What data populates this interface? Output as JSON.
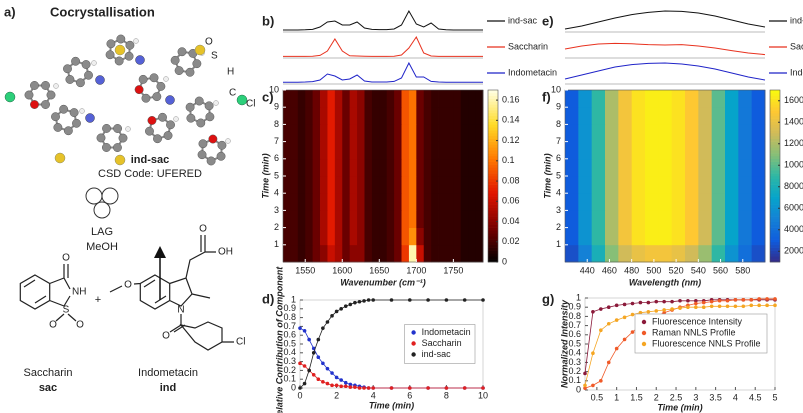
{
  "panels": [
    "a)",
    "b)",
    "c)",
    "d)",
    "e)",
    "f)",
    "g)"
  ],
  "scheme": {
    "title": "Cocrystallisation",
    "atom_labels": [
      "O",
      "S",
      "H",
      "C",
      "Cl"
    ],
    "product": "ind-sac",
    "csd": "CSD Code: UFERED",
    "conditions": [
      "LAG",
      "MeOH"
    ],
    "plus": "+",
    "sac_atoms": [
      "O",
      "NH",
      "S",
      "O",
      "O"
    ],
    "ind_atoms": [
      "O",
      "O",
      "OH",
      "N",
      "O",
      "Cl"
    ],
    "reactants": [
      {
        "name": "Saccharin",
        "code": "sac"
      },
      {
        "name": "Indometacin",
        "code": "ind"
      }
    ]
  },
  "chart_data": [
    {
      "type": "spectra",
      "xlim": [
        1520,
        1790
      ],
      "ylim": [
        0,
        1
      ],
      "x": [
        1520,
        1530,
        1540,
        1550,
        1560,
        1570,
        1580,
        1590,
        1600,
        1610,
        1620,
        1630,
        1640,
        1650,
        1660,
        1670,
        1680,
        1690,
        1700,
        1710,
        1720,
        1730,
        1740,
        1750,
        1760,
        1770,
        1780,
        1790
      ],
      "series": [
        {
          "name": "ind-sac",
          "color": "#111111",
          "values": [
            0.05,
            0.05,
            0.05,
            0.06,
            0.08,
            0.2,
            0.45,
            0.5,
            0.3,
            0.3,
            0.45,
            0.15,
            0.08,
            0.07,
            0.07,
            0.1,
            0.3,
            1,
            0.35,
            0.2,
            0.4,
            0.1,
            0.06,
            0.05,
            0.05,
            0.05,
            0.05,
            0.05
          ]
        },
        {
          "name": "Saccharin",
          "color": "#e8321f",
          "values": [
            0.03,
            0.03,
            0.03,
            0.03,
            0.04,
            0.08,
            0.3,
            0.9,
            0.3,
            0.06,
            0.05,
            0.04,
            0.03,
            0.03,
            0.03,
            0.04,
            0.1,
            0.45,
            1,
            0.2,
            0.05,
            0.03,
            0.03,
            0.03,
            0.03,
            0.03,
            0.03,
            0.03
          ]
        },
        {
          "name": "Indometacin",
          "color": "#1f23c8",
          "values": [
            0.04,
            0.04,
            0.04,
            0.05,
            0.07,
            0.15,
            0.45,
            0.35,
            0.15,
            0.2,
            0.4,
            0.1,
            0.05,
            0.05,
            0.05,
            0.08,
            0.25,
            1,
            0.3,
            0.3,
            0.08,
            0.05,
            0.04,
            0.04,
            0.04,
            0.04,
            0.04,
            0.04
          ]
        }
      ]
    },
    {
      "type": "heatmap",
      "xlabel": "Wavenumber (cm⁻¹)",
      "ylabel": "Time (min)",
      "colormap": "hot",
      "xlim": [
        1520,
        1790
      ],
      "ylim": [
        0,
        10
      ],
      "clim": [
        0,
        0.17
      ],
      "xticks": [
        1550,
        1600,
        1650,
        1700,
        1750
      ],
      "yticks": [
        1,
        2,
        3,
        4,
        5,
        6,
        7,
        8,
        9,
        10
      ],
      "cticks": [
        0,
        0.02,
        0.04,
        0.06,
        0.08,
        0.1,
        0.12,
        0.14,
        0.16
      ],
      "x": [
        1525,
        1535,
        1545,
        1555,
        1565,
        1575,
        1585,
        1595,
        1605,
        1615,
        1625,
        1635,
        1645,
        1655,
        1665,
        1675,
        1685,
        1695,
        1705,
        1715,
        1725,
        1735,
        1745,
        1755,
        1765,
        1775,
        1785
      ],
      "y": [
        0.5,
        1.5,
        2.5,
        3.5,
        4.5,
        5.5,
        6.5,
        7.5,
        8.5,
        9.5
      ],
      "z": [
        [
          0.02,
          0.02,
          0.015,
          0.02,
          0.03,
          0.04,
          0.06,
          0.05,
          0.03,
          0.04,
          0.04,
          0.02,
          0.015,
          0.015,
          0.02,
          0.03,
          0.08,
          0.16,
          0.06,
          0.02,
          0.015,
          0.015,
          0.015,
          0.015,
          0.01,
          0.01,
          0.01
        ],
        [
          0.02,
          0.02,
          0.015,
          0.02,
          0.03,
          0.05,
          0.07,
          0.05,
          0.03,
          0.05,
          0.04,
          0.02,
          0.015,
          0.015,
          0.02,
          0.03,
          0.09,
          0.11,
          0.04,
          0.02,
          0.015,
          0.015,
          0.015,
          0.015,
          0.01,
          0.01,
          0.01
        ],
        [
          0.02,
          0.02,
          0.015,
          0.02,
          0.03,
          0.05,
          0.07,
          0.05,
          0.03,
          0.05,
          0.04,
          0.02,
          0.015,
          0.015,
          0.02,
          0.03,
          0.09,
          0.1,
          0.03,
          0.02,
          0.015,
          0.015,
          0.015,
          0.015,
          0.01,
          0.01,
          0.01
        ],
        [
          0.02,
          0.02,
          0.015,
          0.02,
          0.03,
          0.05,
          0.07,
          0.05,
          0.03,
          0.05,
          0.04,
          0.02,
          0.015,
          0.015,
          0.02,
          0.03,
          0.09,
          0.1,
          0.03,
          0.02,
          0.015,
          0.015,
          0.015,
          0.015,
          0.01,
          0.01,
          0.01
        ],
        [
          0.02,
          0.02,
          0.015,
          0.02,
          0.03,
          0.05,
          0.07,
          0.05,
          0.03,
          0.05,
          0.04,
          0.02,
          0.015,
          0.015,
          0.02,
          0.03,
          0.09,
          0.1,
          0.03,
          0.02,
          0.015,
          0.015,
          0.015,
          0.015,
          0.01,
          0.01,
          0.01
        ],
        [
          0.02,
          0.02,
          0.015,
          0.02,
          0.03,
          0.05,
          0.07,
          0.05,
          0.03,
          0.05,
          0.04,
          0.02,
          0.015,
          0.015,
          0.02,
          0.03,
          0.09,
          0.1,
          0.03,
          0.02,
          0.015,
          0.015,
          0.015,
          0.015,
          0.01,
          0.01,
          0.01
        ],
        [
          0.02,
          0.02,
          0.015,
          0.02,
          0.03,
          0.05,
          0.07,
          0.05,
          0.03,
          0.05,
          0.04,
          0.02,
          0.015,
          0.015,
          0.02,
          0.03,
          0.09,
          0.1,
          0.03,
          0.02,
          0.015,
          0.015,
          0.015,
          0.015,
          0.01,
          0.01,
          0.01
        ],
        [
          0.02,
          0.02,
          0.015,
          0.02,
          0.03,
          0.05,
          0.07,
          0.05,
          0.03,
          0.05,
          0.04,
          0.02,
          0.015,
          0.015,
          0.02,
          0.03,
          0.09,
          0.1,
          0.03,
          0.02,
          0.015,
          0.015,
          0.015,
          0.015,
          0.01,
          0.01,
          0.01
        ],
        [
          0.02,
          0.02,
          0.015,
          0.02,
          0.03,
          0.05,
          0.07,
          0.05,
          0.03,
          0.05,
          0.04,
          0.02,
          0.015,
          0.015,
          0.02,
          0.03,
          0.09,
          0.1,
          0.03,
          0.02,
          0.015,
          0.015,
          0.015,
          0.015,
          0.01,
          0.01,
          0.01
        ],
        [
          0.02,
          0.02,
          0.015,
          0.02,
          0.03,
          0.05,
          0.07,
          0.05,
          0.03,
          0.05,
          0.04,
          0.02,
          0.015,
          0.015,
          0.02,
          0.03,
          0.09,
          0.1,
          0.03,
          0.02,
          0.015,
          0.015,
          0.015,
          0.015,
          0.01,
          0.01,
          0.01
        ]
      ]
    },
    {
      "type": "scatter",
      "xlabel": "Time (min)",
      "ylabel": "Relative Contribution of Component",
      "xlim": [
        0,
        10
      ],
      "ylim": [
        0,
        1
      ],
      "xticks": [
        0,
        2,
        4,
        6,
        8,
        10
      ],
      "yticks": [
        0,
        0.1,
        0.2,
        0.3,
        0.4,
        0.5,
        0.6,
        0.7,
        0.8,
        0.9,
        1
      ],
      "legend": "center right",
      "line": true,
      "x": [
        0,
        0.25,
        0.5,
        0.75,
        1,
        1.25,
        1.5,
        1.75,
        2,
        2.25,
        2.5,
        2.75,
        3,
        3.25,
        3.5,
        3.75,
        4,
        5,
        6,
        7,
        8,
        9,
        10
      ],
      "series": [
        {
          "name": "Indometacin",
          "color": "#2233cc",
          "values": [
            0.68,
            0.65,
            0.55,
            0.45,
            0.35,
            0.28,
            0.22,
            0.17,
            0.12,
            0.09,
            0.06,
            0.04,
            0.03,
            0.02,
            0.01,
            0,
            0,
            0,
            0,
            0,
            0,
            0,
            0
          ]
        },
        {
          "name": "Saccharin",
          "color": "#e02020",
          "values": [
            0.28,
            0.25,
            0.2,
            0.15,
            0.1,
            0.07,
            0.05,
            0.03,
            0.03,
            0.02,
            0.02,
            0.01,
            0.01,
            0,
            0,
            0,
            0,
            0,
            0,
            0,
            0,
            0,
            0
          ]
        },
        {
          "name": "ind-sac",
          "color": "#222222",
          "values": [
            0,
            0.05,
            0.2,
            0.4,
            0.55,
            0.68,
            0.75,
            0.82,
            0.87,
            0.9,
            0.93,
            0.95,
            0.97,
            0.98,
            0.99,
            1,
            1,
            1,
            1,
            1,
            1,
            1,
            1
          ]
        }
      ]
    },
    {
      "type": "spectra",
      "xlim": [
        420,
        600
      ],
      "ylim": [
        0,
        1
      ],
      "x": [
        420,
        435,
        450,
        465,
        480,
        495,
        510,
        525,
        540,
        555,
        570,
        585,
        600
      ],
      "series": [
        {
          "name": "ind-sac",
          "color": "#111111",
          "values": [
            0.1,
            0.25,
            0.45,
            0.65,
            0.82,
            0.93,
            1,
            0.98,
            0.9,
            0.75,
            0.55,
            0.35,
            0.2
          ]
        },
        {
          "name": "Saccharin",
          "color": "#e8321f",
          "values": [
            0.4,
            0.55,
            0.65,
            0.68,
            0.66,
            0.62,
            0.6,
            0.62,
            0.55,
            0.45,
            0.32,
            0.2,
            0.12
          ]
        },
        {
          "name": "Indometacin",
          "color": "#1f23c8",
          "values": [
            0.2,
            0.4,
            0.6,
            0.8,
            0.92,
            0.98,
            1,
            0.95,
            0.85,
            0.7,
            0.5,
            0.3,
            0.15
          ]
        }
      ]
    },
    {
      "type": "heatmap",
      "xlabel": "Wavelength (nm)",
      "ylabel": "Time (min)",
      "colormap": "parula",
      "xlim": [
        420,
        600
      ],
      "ylim": [
        0,
        10
      ],
      "clim": [
        1000,
        17000
      ],
      "xticks": [
        440,
        460,
        480,
        500,
        520,
        540,
        560,
        580
      ],
      "yticks": [
        1,
        2,
        3,
        4,
        5,
        6,
        7,
        8,
        9,
        10
      ],
      "cticks": [
        2000,
        4000,
        6000,
        8000,
        10000,
        12000,
        14000,
        16000
      ],
      "x": [
        426,
        438,
        450,
        462,
        474,
        486,
        498,
        510,
        522,
        534,
        546,
        558,
        570,
        582,
        594
      ],
      "y": [
        0.5,
        1.5,
        2.5,
        3.5,
        4.5,
        5.5,
        6.5,
        7.5,
        8.5,
        9.5
      ],
      "z": [
        [
          2500,
          5000,
          8000,
          11000,
          13000,
          14000,
          14500,
          14500,
          14000,
          13000,
          11500,
          9000,
          6000,
          4000,
          2500
        ],
        [
          3000,
          6000,
          9000,
          12000,
          14500,
          16000,
          16500,
          16500,
          16000,
          15000,
          13000,
          10000,
          7000,
          4500,
          3000
        ],
        [
          3000,
          6000,
          9000,
          12000,
          14500,
          16000,
          16500,
          16500,
          16000,
          15000,
          13000,
          10000,
          7000,
          4500,
          3000
        ],
        [
          3000,
          6000,
          9000,
          12000,
          14500,
          16000,
          16500,
          16500,
          16000,
          15000,
          13000,
          10000,
          7000,
          4500,
          3000
        ],
        [
          3000,
          6000,
          9000,
          12000,
          14500,
          16000,
          16500,
          16500,
          16000,
          15000,
          13000,
          10000,
          7000,
          4500,
          3000
        ],
        [
          3000,
          6000,
          9000,
          12000,
          14500,
          16000,
          16500,
          16500,
          16000,
          15000,
          13000,
          10000,
          7000,
          4500,
          3000
        ],
        [
          3000,
          6000,
          9000,
          12000,
          14500,
          16000,
          16500,
          16500,
          16000,
          15000,
          13000,
          10000,
          7000,
          4500,
          3000
        ],
        [
          3000,
          6000,
          9000,
          12000,
          14500,
          16000,
          16500,
          16500,
          16000,
          15000,
          13000,
          10000,
          7000,
          4500,
          3000
        ],
        [
          3000,
          6000,
          9000,
          12000,
          14500,
          16000,
          16500,
          16500,
          16000,
          15000,
          13000,
          10000,
          7000,
          4500,
          3000
        ],
        [
          3000,
          6000,
          9000,
          12000,
          14500,
          16000,
          16500,
          16500,
          16000,
          15000,
          13000,
          10000,
          7000,
          4500,
          3000
        ]
      ]
    },
    {
      "type": "scatter",
      "xlabel": "Time (min)",
      "ylabel": "Normalized Intensity",
      "xlim": [
        0.2,
        5
      ],
      "ylim": [
        0,
        1
      ],
      "xticks": [
        0.5,
        1,
        1.5,
        2,
        2.5,
        3,
        3.5,
        4,
        4.5,
        5
      ],
      "yticks": [
        0,
        0.1,
        0.2,
        0.3,
        0.4,
        0.5,
        0.6,
        0.7,
        0.8,
        0.9,
        1
      ],
      "legend": "upper right",
      "line": true,
      "x": [
        0.2,
        0.4,
        0.6,
        0.8,
        1,
        1.2,
        1.4,
        1.6,
        1.8,
        2,
        2.2,
        2.4,
        2.6,
        2.8,
        3,
        3.2,
        3.4,
        3.6,
        3.8,
        4,
        4.2,
        4.4,
        4.6,
        4.8,
        5
      ],
      "series": [
        {
          "name": "Fluorescence Intensity",
          "color": "#8b1a3a",
          "values": [
            0.18,
            0.85,
            0.88,
            0.9,
            0.92,
            0.93,
            0.94,
            0.95,
            0.95,
            0.96,
            0.96,
            0.96,
            0.97,
            0.97,
            0.97,
            0.97,
            0.98,
            0.98,
            0.98,
            0.98,
            0.98,
            0.98,
            0.98,
            0.98,
            0.98
          ]
        },
        {
          "name": "Raman NNLS Profile",
          "color": "#f05a28",
          "values": [
            0.02,
            0.05,
            0.1,
            0.3,
            0.45,
            0.55,
            0.63,
            0.7,
            0.76,
            0.8,
            0.84,
            0.87,
            0.9,
            0.92,
            0.94,
            0.95,
            0.96,
            0.97,
            0.97,
            0.98,
            0.98,
            0.98,
            0.99,
            0.99,
            0.99
          ]
        },
        {
          "name": "Fluorescence NNLS Profile",
          "color": "#f5a623",
          "values": [
            0.05,
            0.4,
            0.65,
            0.72,
            0.76,
            0.79,
            0.82,
            0.84,
            0.85,
            0.86,
            0.87,
            0.88,
            0.89,
            0.9,
            0.9,
            0.9,
            0.91,
            0.91,
            0.91,
            0.91,
            0.91,
            0.92,
            0.92,
            0.92,
            0.92
          ]
        }
      ]
    }
  ]
}
